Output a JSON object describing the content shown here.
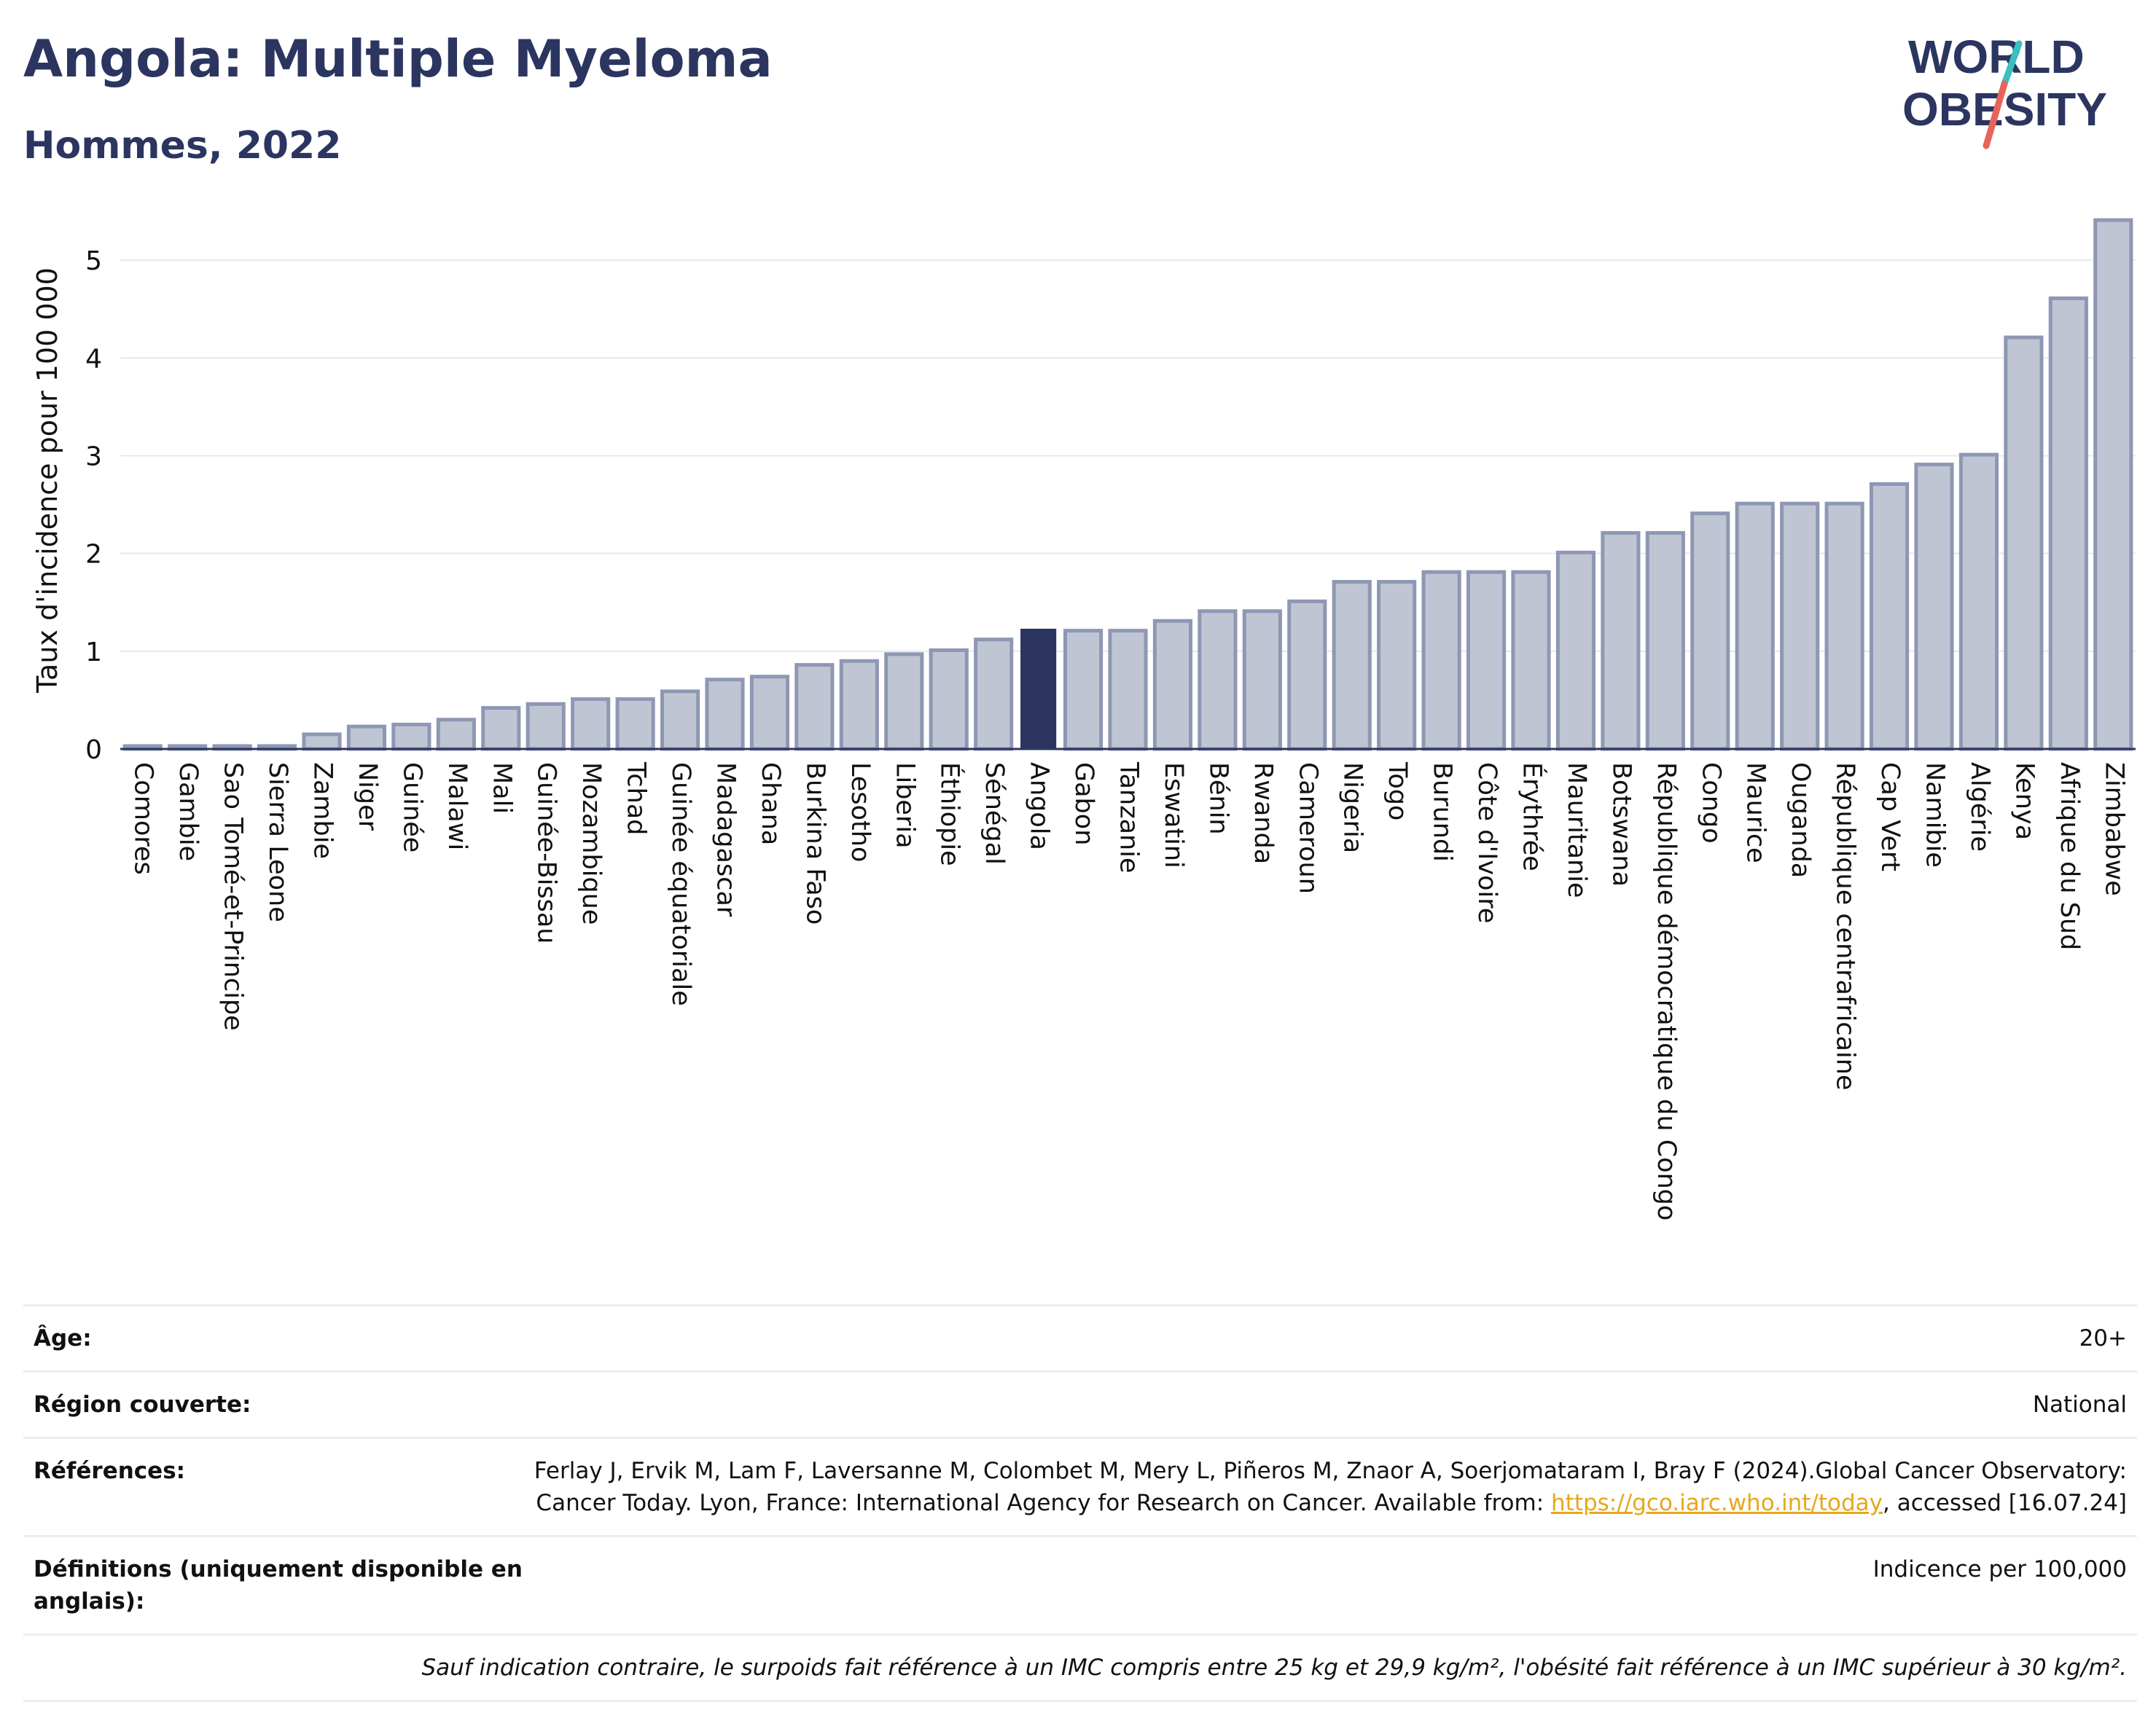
{
  "header": {
    "title": "Angola: Multiple Myeloma",
    "subtitle": "Hommes, 2022"
  },
  "logo": {
    "line1": "WORLD",
    "line2": "OBESITY",
    "colors": {
      "text": "#2b3560",
      "slash_top": "#3bbfbf",
      "slash_bottom": "#e8645a"
    }
  },
  "chart_data": {
    "type": "bar",
    "title": "",
    "xlabel": "",
    "ylabel": "Taux d'incidence pour 100 000",
    "ylim": [
      0,
      5.5
    ],
    "yticks": [
      0,
      1,
      2,
      3,
      4,
      5
    ],
    "grid": true,
    "highlight": "Angola",
    "colors": {
      "bar": "#c0c5d4",
      "bar_edge": "#8e97b3",
      "highlight": "#2b3560",
      "grid": "#e6e8ef",
      "axis": "#2b3560"
    },
    "categories": [
      "Comores",
      "Gambie",
      "Sao Tomé-et-Principe",
      "Sierra Leone",
      "Zambie",
      "Niger",
      "Guinée",
      "Malawi",
      "Mali",
      "Guinée-Bissau",
      "Mozambique",
      "Tchad",
      "Guinée équatoriale",
      "Madagascar",
      "Ghana",
      "Burkina Faso",
      "Lesotho",
      "Liberia",
      "Éthiopie",
      "Sénégal",
      "Angola",
      "Gabon",
      "Tanzanie",
      "Eswatini",
      "Bénin",
      "Rwanda",
      "Cameroun",
      "Nigeria",
      "Togo",
      "Burundi",
      "Côte d'Ivoire",
      "Érythrée",
      "Mauritanie",
      "Botswana",
      "République démocratique du Congo",
      "Congo",
      "Maurice",
      "Ouganda",
      "République centrafricaine",
      "Cap Vert",
      "Namibie",
      "Algérie",
      "Kenya",
      "Afrique du Sud",
      "Zimbabwe"
    ],
    "values": [
      0.03,
      0.03,
      0.03,
      0.03,
      0.15,
      0.23,
      0.25,
      0.3,
      0.42,
      0.46,
      0.51,
      0.51,
      0.59,
      0.71,
      0.74,
      0.86,
      0.9,
      0.97,
      1.01,
      1.12,
      1.23,
      1.21,
      1.21,
      1.31,
      1.41,
      1.41,
      1.51,
      1.71,
      1.71,
      1.81,
      1.81,
      1.81,
      2.01,
      2.21,
      2.21,
      2.41,
      2.51,
      2.51,
      2.51,
      2.71,
      2.91,
      3.01,
      4.21,
      4.61,
      5.41
    ]
  },
  "info": {
    "age_label": "Âge:",
    "age_value": "20+",
    "region_label": "Région couverte:",
    "region_value": "National",
    "refs_label": "Références:",
    "refs_text": "Ferlay J, Ervik M, Lam F, Laversanne M, Colombet M, Mery L, Piñeros M, Znaor A, Soerjomataram I, Bray F (2024).Global Cancer Observatory: Cancer Today. Lyon, France: International Agency for Research on Cancer. Available from: ",
    "refs_link": "https://gco.iarc.who.int/today",
    "refs_suffix": ", accessed [16.07.24]",
    "defs_label": "Définitions (uniquement disponible en anglais):",
    "defs_value": "Indicence per 100,000",
    "note": "Sauf indication contraire, le surpoids fait référence à un IMC compris entre 25 kg et 29,9 kg/m², l'obésité fait référence à un IMC supérieur à 30 kg/m²."
  }
}
